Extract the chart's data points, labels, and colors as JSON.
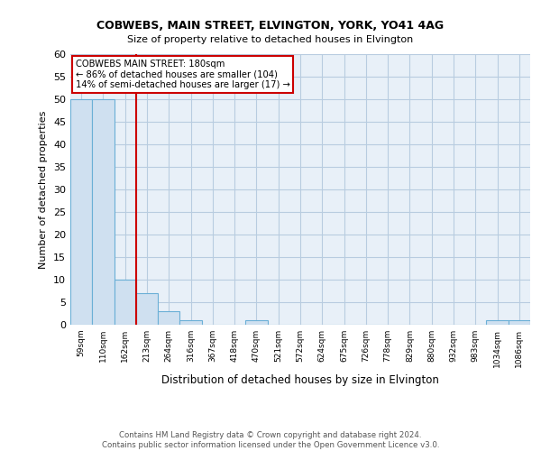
{
  "title1": "COBWEBS, MAIN STREET, ELVINGTON, YORK, YO41 4AG",
  "title2": "Size of property relative to detached houses in Elvington",
  "xlabel": "Distribution of detached houses by size in Elvington",
  "ylabel": "Number of detached properties",
  "footer1": "Contains HM Land Registry data © Crown copyright and database right 2024.",
  "footer2": "Contains public sector information licensed under the Open Government Licence v3.0.",
  "annotation_line1": "COBWEBS MAIN STREET: 180sqm",
  "annotation_line2": "← 86% of detached houses are smaller (104)",
  "annotation_line3": "14% of semi-detached houses are larger (17) →",
  "bins": [
    "59sqm",
    "110sqm",
    "162sqm",
    "213sqm",
    "264sqm",
    "316sqm",
    "367sqm",
    "418sqm",
    "470sqm",
    "521sqm",
    "572sqm",
    "624sqm",
    "675sqm",
    "726sqm",
    "778sqm",
    "829sqm",
    "880sqm",
    "932sqm",
    "983sqm",
    "1034sqm",
    "1086sqm"
  ],
  "values": [
    50,
    50,
    10,
    7,
    3,
    1,
    0,
    0,
    1,
    0,
    0,
    0,
    0,
    0,
    0,
    0,
    0,
    0,
    0,
    1,
    1
  ],
  "bar_color": "#cfe0f0",
  "bar_edge_color": "#6aafd6",
  "red_line_x": 2.5,
  "ylim": [
    0,
    60
  ],
  "bg_color": "#e8f0f8",
  "grid_color": "#b8cce0",
  "annotation_box_color": "#cc0000",
  "yticks": [
    0,
    5,
    10,
    15,
    20,
    25,
    30,
    35,
    40,
    45,
    50,
    55,
    60
  ]
}
